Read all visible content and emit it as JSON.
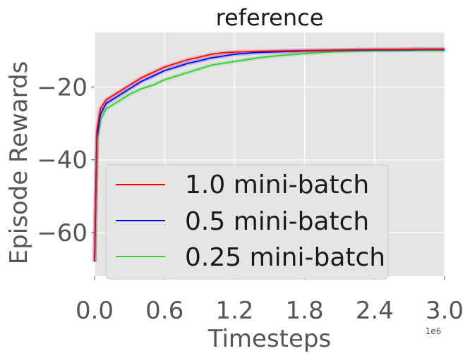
{
  "chart_data": {
    "type": "line",
    "title": "reference",
    "xlabel": "Timesteps",
    "ylabel": "Episode Rewards",
    "x_offset_text": "1e6",
    "xlim": [
      0,
      3.0
    ],
    "ylim": [
      -72,
      -5
    ],
    "x_ticks": [
      0.0,
      0.6,
      1.2,
      1.8,
      2.4,
      3.0
    ],
    "x_tick_labels": [
      "0.0",
      "0.6",
      "1.2",
      "1.8",
      "2.4",
      "3.0"
    ],
    "y_ticks": [
      -60,
      -40,
      -20
    ],
    "y_tick_labels": [
      "−60",
      "−40",
      "−20"
    ],
    "grid": true,
    "legend_position": "lower-left",
    "series": [
      {
        "name": "1.0 mini-batch",
        "color": "#ff0000",
        "x": [
          0,
          0.02,
          0.05,
          0.1,
          0.2,
          0.3,
          0.4,
          0.5,
          0.6,
          0.7,
          0.8,
          0.9,
          1.0,
          1.1,
          1.2,
          1.4,
          1.6,
          1.8,
          2.0,
          2.2,
          2.4,
          2.6,
          2.8,
          3.0
        ],
        "y": [
          -68,
          -32,
          -26,
          -23.5,
          -21.5,
          -19.5,
          -17.5,
          -16,
          -14.5,
          -13.5,
          -12.5,
          -11.8,
          -11,
          -10.6,
          -10.4,
          -10.2,
          -10.1,
          -10,
          -9.9,
          -9.8,
          -9.7,
          -9.7,
          -9.6,
          -9.6
        ]
      },
      {
        "name": "0.5 mini-batch",
        "color": "#0000ff",
        "x": [
          0,
          0.02,
          0.05,
          0.1,
          0.2,
          0.3,
          0.4,
          0.5,
          0.6,
          0.7,
          0.8,
          0.9,
          1.0,
          1.1,
          1.2,
          1.4,
          1.6,
          1.8,
          2.0,
          2.2,
          2.4,
          2.6,
          2.8,
          3.0
        ],
        "y": [
          -68,
          -34,
          -27.5,
          -24.5,
          -22.5,
          -20.5,
          -18.5,
          -17,
          -15.5,
          -14.5,
          -13.5,
          -12.8,
          -12,
          -11.5,
          -11,
          -10.5,
          -10.3,
          -10.1,
          -10,
          -9.9,
          -9.8,
          -9.8,
          -9.7,
          -9.7
        ]
      },
      {
        "name": "0.25 mini-batch",
        "color": "#33cc33",
        "x": [
          0,
          0.02,
          0.05,
          0.1,
          0.2,
          0.3,
          0.4,
          0.5,
          0.6,
          0.7,
          0.8,
          0.9,
          1.0,
          1.1,
          1.2,
          1.4,
          1.6,
          1.8,
          2.0,
          2.2,
          2.4,
          2.6,
          2.8,
          3.0
        ],
        "y": [
          -68,
          -35,
          -29,
          -26,
          -24,
          -22,
          -20.5,
          -19.5,
          -18,
          -17,
          -16,
          -15,
          -14,
          -13.5,
          -13,
          -12,
          -11.3,
          -10.8,
          -10.4,
          -10.1,
          -10,
          -9.9,
          -9.9,
          -9.9
        ]
      }
    ]
  }
}
